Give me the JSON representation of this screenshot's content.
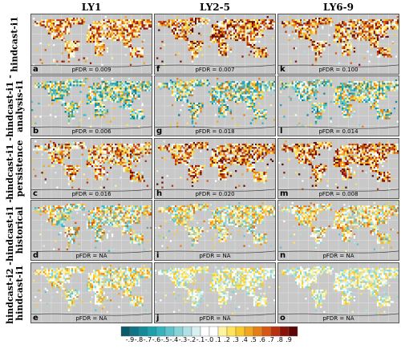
{
  "columns": [
    "LY1",
    "LY2-5",
    "LY6-9"
  ],
  "rows": [
    {
      "label": "hindcast-i1"
    },
    {
      "label": "hindcast-i1 -\nanalysis-i1"
    },
    {
      "label": "hindcast-i1 -\npersistence"
    },
    {
      "label": "hindcast-i1 -\nhistorical"
    },
    {
      "label": "hindcast-i2 -\nhindcast-i1"
    }
  ],
  "panels": [
    {
      "letter": "a",
      "pfdr": "pFDR = 0.009",
      "bias": 0.35,
      "spread": 0.35
    },
    {
      "letter": "f",
      "pfdr": "pFDR = 0.007",
      "bias": 0.4,
      "spread": 0.4
    },
    {
      "letter": "k",
      "pfdr": "pFDR = 0.100",
      "bias": 0.35,
      "spread": 0.4
    },
    {
      "letter": "b",
      "pfdr": "pFDR = 0.006",
      "bias": -0.15,
      "spread": 0.45
    },
    {
      "letter": "g",
      "pfdr": "pFDR = 0.018",
      "bias": -0.1,
      "spread": 0.45
    },
    {
      "letter": "l",
      "pfdr": "pFDR = 0.014",
      "bias": -0.1,
      "spread": 0.45
    },
    {
      "letter": "c",
      "pfdr": "pFDR = 0.016",
      "bias": 0.3,
      "spread": 0.4
    },
    {
      "letter": "h",
      "pfdr": "pFDR = 0.020",
      "bias": 0.4,
      "spread": 0.4
    },
    {
      "letter": "m",
      "pfdr": "pFDR = 0.008",
      "bias": 0.4,
      "spread": 0.4
    },
    {
      "letter": "d",
      "pfdr": "pFDR = NA",
      "bias": 0.05,
      "spread": 0.4
    },
    {
      "letter": "i",
      "pfdr": "pFDR = NA",
      "bias": 0.05,
      "spread": 0.35
    },
    {
      "letter": "n",
      "pfdr": "pFDR = NA",
      "bias": 0.1,
      "spread": 0.35
    },
    {
      "letter": "e",
      "pfdr": "pFDR = NA",
      "bias": 0.05,
      "spread": 0.3
    },
    {
      "letter": "j",
      "pfdr": "pFDR = NA",
      "bias": 0.0,
      "spread": 0.25
    },
    {
      "letter": "o",
      "pfdr": "pFDR = NA",
      "bias": 0.0,
      "spread": 0.25
    }
  ],
  "colorbar": {
    "ticks": [
      "-.9",
      "-.8",
      "-.7",
      "-.6",
      "-.5",
      "-.4",
      "-.3",
      "-.2",
      "-.1",
      "-.0",
      ".1",
      ".2",
      ".3",
      ".4",
      ".5",
      ".6",
      ".7",
      ".8",
      ".9"
    ],
    "colors": [
      "#0a5a6a",
      "#0e7384",
      "#128a9a",
      "#1ba0ae",
      "#34b3bf",
      "#5cc3cc",
      "#86d3d8",
      "#b0e2e5",
      "#d8f0f1",
      "#ffffff",
      "#ffffff",
      "#fff2a0",
      "#ffe35a",
      "#f9c92c",
      "#f2a51e",
      "#e67e16",
      "#d65612",
      "#b8300e",
      "#8a1209",
      "#5e0606"
    ]
  }
}
